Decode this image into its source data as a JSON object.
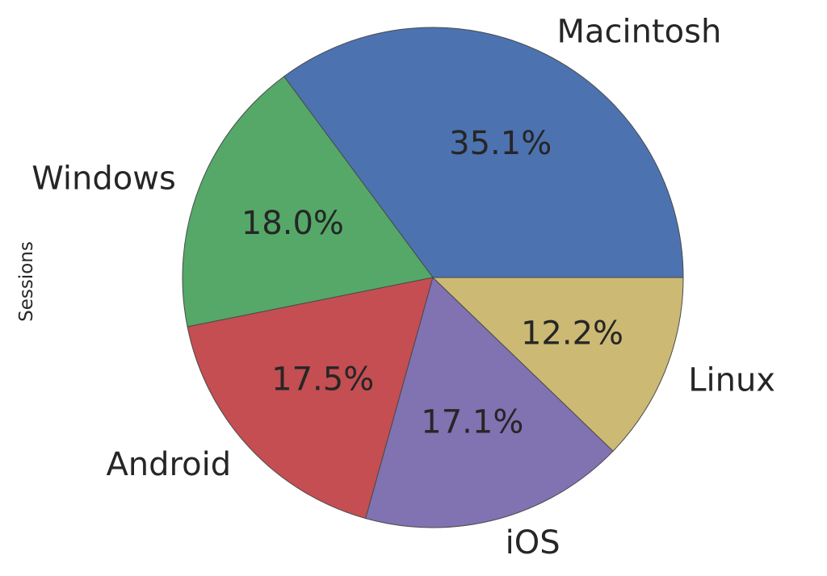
{
  "chart_data": {
    "type": "pie",
    "title": "",
    "ylabel": "Sessions",
    "start_angle_degrees": 0,
    "direction": "counterclockwise",
    "slices": [
      {
        "label": "Macintosh",
        "value": 35.1,
        "pct_label": "35.1%",
        "color": "#4C72B0"
      },
      {
        "label": "Windows",
        "value": 18.0,
        "pct_label": "18.0%",
        "color": "#55A868"
      },
      {
        "label": "Android",
        "value": 17.5,
        "pct_label": "17.5%",
        "color": "#C44E52"
      },
      {
        "label": "iOS",
        "value": 17.1,
        "pct_label": "17.1%",
        "color": "#8172B2"
      },
      {
        "label": "Linux",
        "value": 12.2,
        "pct_label": "12.2%",
        "color": "#CCB974"
      }
    ]
  }
}
